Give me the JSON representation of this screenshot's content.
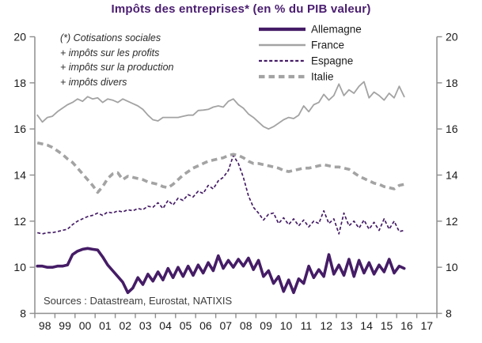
{
  "title": "Impôts des entreprises* (en % du PIB valeur)",
  "footnote": {
    "lines": [
      "(*) Cotisations sociales",
      "+ impôts sur les profits",
      "+ impôts sur la production",
      "+ impôts divers"
    ]
  },
  "sources": "Sources : Datastream, Eurostat, NATIXIS",
  "colors": {
    "purple": "#451c66",
    "gray": "#a3a3a3",
    "axis": "#8e8e8e",
    "text": "#1a1a1a",
    "title": "#4a1d70"
  },
  "chart_data": {
    "type": "line",
    "title": "Impôts des entreprises* (en % du PIB valeur)",
    "x_unit": "quarterly",
    "x_start": 1998.125,
    "x_step": 0.25,
    "x_end": 2016.375,
    "x_axis": {
      "range_years": [
        1998,
        2018
      ],
      "labels": [
        "98",
        "99",
        "00",
        "01",
        "02",
        "03",
        "04",
        "05",
        "06",
        "07",
        "08",
        "09",
        "10",
        "11",
        "12",
        "13",
        "14",
        "15",
        "16",
        "17"
      ]
    },
    "y_axis": {
      "min": 8,
      "max": 20,
      "ticks": [
        20,
        18,
        16,
        14,
        12,
        10,
        8
      ],
      "dual_axis": true
    },
    "legend_position": "top-right-inside",
    "grid": false,
    "series": [
      {
        "name": "Allemagne",
        "color": "#451c66",
        "width": 3.6,
        "dash": "",
        "values": [
          10.05,
          10.05,
          10.0,
          10.0,
          10.05,
          10.05,
          10.1,
          10.55,
          10.7,
          10.78,
          10.82,
          10.78,
          10.75,
          10.45,
          10.1,
          9.85,
          9.6,
          9.35,
          8.9,
          9.1,
          9.55,
          9.25,
          9.7,
          9.4,
          9.8,
          9.45,
          9.95,
          9.55,
          10.0,
          9.6,
          10.05,
          9.65,
          10.1,
          9.75,
          10.2,
          9.85,
          10.5,
          9.95,
          10.3,
          10.0,
          10.35,
          10.05,
          10.4,
          9.9,
          10.3,
          9.6,
          9.85,
          9.3,
          9.6,
          8.95,
          9.45,
          8.9,
          9.5,
          9.3,
          10.05,
          9.55,
          9.9,
          9.6,
          10.55,
          9.7,
          10.1,
          9.65,
          10.35,
          9.6,
          10.3,
          9.75,
          10.2,
          9.7,
          10.1,
          9.8,
          10.35,
          9.75,
          10.05,
          9.95
        ]
      },
      {
        "name": "France",
        "color": "#a3a3a3",
        "width": 1.8,
        "dash": "",
        "values": [
          16.6,
          16.3,
          16.5,
          16.55,
          16.75,
          16.9,
          17.05,
          17.15,
          17.3,
          17.2,
          17.4,
          17.3,
          17.35,
          17.15,
          17.3,
          17.25,
          17.15,
          17.3,
          17.2,
          17.1,
          17.0,
          16.85,
          16.6,
          16.4,
          16.35,
          16.5,
          16.5,
          16.5,
          16.5,
          16.55,
          16.6,
          16.6,
          16.8,
          16.82,
          16.85,
          16.95,
          17.0,
          16.95,
          17.2,
          17.3,
          17.05,
          16.9,
          16.65,
          16.5,
          16.3,
          16.1,
          16.0,
          16.1,
          16.25,
          16.4,
          16.5,
          16.45,
          16.6,
          17.0,
          16.75,
          17.05,
          17.15,
          17.5,
          17.25,
          17.45,
          17.95,
          17.45,
          17.7,
          17.55,
          17.85,
          18.05,
          17.35,
          17.6,
          17.45,
          17.25,
          17.55,
          17.35,
          17.85,
          17.4
        ]
      },
      {
        "name": "Espagne",
        "color": "#451c66",
        "width": 1.7,
        "dash": "4 2.6",
        "values": [
          11.5,
          11.45,
          11.5,
          11.5,
          11.55,
          11.6,
          11.65,
          11.85,
          12.0,
          12.1,
          12.2,
          12.25,
          12.35,
          12.25,
          12.4,
          12.35,
          12.45,
          12.4,
          12.5,
          12.45,
          12.55,
          12.5,
          12.65,
          12.6,
          12.8,
          12.55,
          12.9,
          12.7,
          13.0,
          12.9,
          13.15,
          13.05,
          13.3,
          13.2,
          13.55,
          13.4,
          13.75,
          13.9,
          14.2,
          14.85,
          14.5,
          13.9,
          13.1,
          12.6,
          12.35,
          12.05,
          12.3,
          12.35,
          11.9,
          12.15,
          11.85,
          12.1,
          11.8,
          12.05,
          11.75,
          12.0,
          11.9,
          12.45,
          11.9,
          12.1,
          11.45,
          12.35,
          11.8,
          12.0,
          11.7,
          12.05,
          11.65,
          11.95,
          11.6,
          12.1,
          11.65,
          12.0,
          11.55,
          11.6
        ]
      },
      {
        "name": "Italie",
        "color": "#a3a3a3",
        "width": 3.6,
        "dash": "7.5 5",
        "values": [
          15.4,
          15.35,
          15.3,
          15.2,
          15.05,
          14.9,
          14.7,
          14.55,
          14.3,
          14.05,
          13.8,
          13.55,
          13.25,
          13.5,
          13.85,
          14.05,
          14.1,
          13.8,
          13.95,
          13.9,
          13.85,
          13.8,
          13.7,
          13.65,
          13.6,
          13.5,
          13.45,
          13.6,
          13.8,
          14.0,
          14.15,
          14.3,
          14.4,
          14.5,
          14.6,
          14.65,
          14.7,
          14.75,
          14.85,
          14.9,
          14.85,
          14.75,
          14.6,
          14.5,
          14.5,
          14.45,
          14.4,
          14.35,
          14.3,
          14.2,
          14.15,
          14.2,
          14.25,
          14.3,
          14.3,
          14.35,
          14.4,
          14.45,
          14.4,
          14.35,
          14.35,
          14.3,
          14.25,
          14.1,
          13.95,
          13.85,
          13.75,
          13.65,
          13.6,
          13.5,
          13.45,
          13.4,
          13.55,
          13.6
        ]
      }
    ]
  }
}
